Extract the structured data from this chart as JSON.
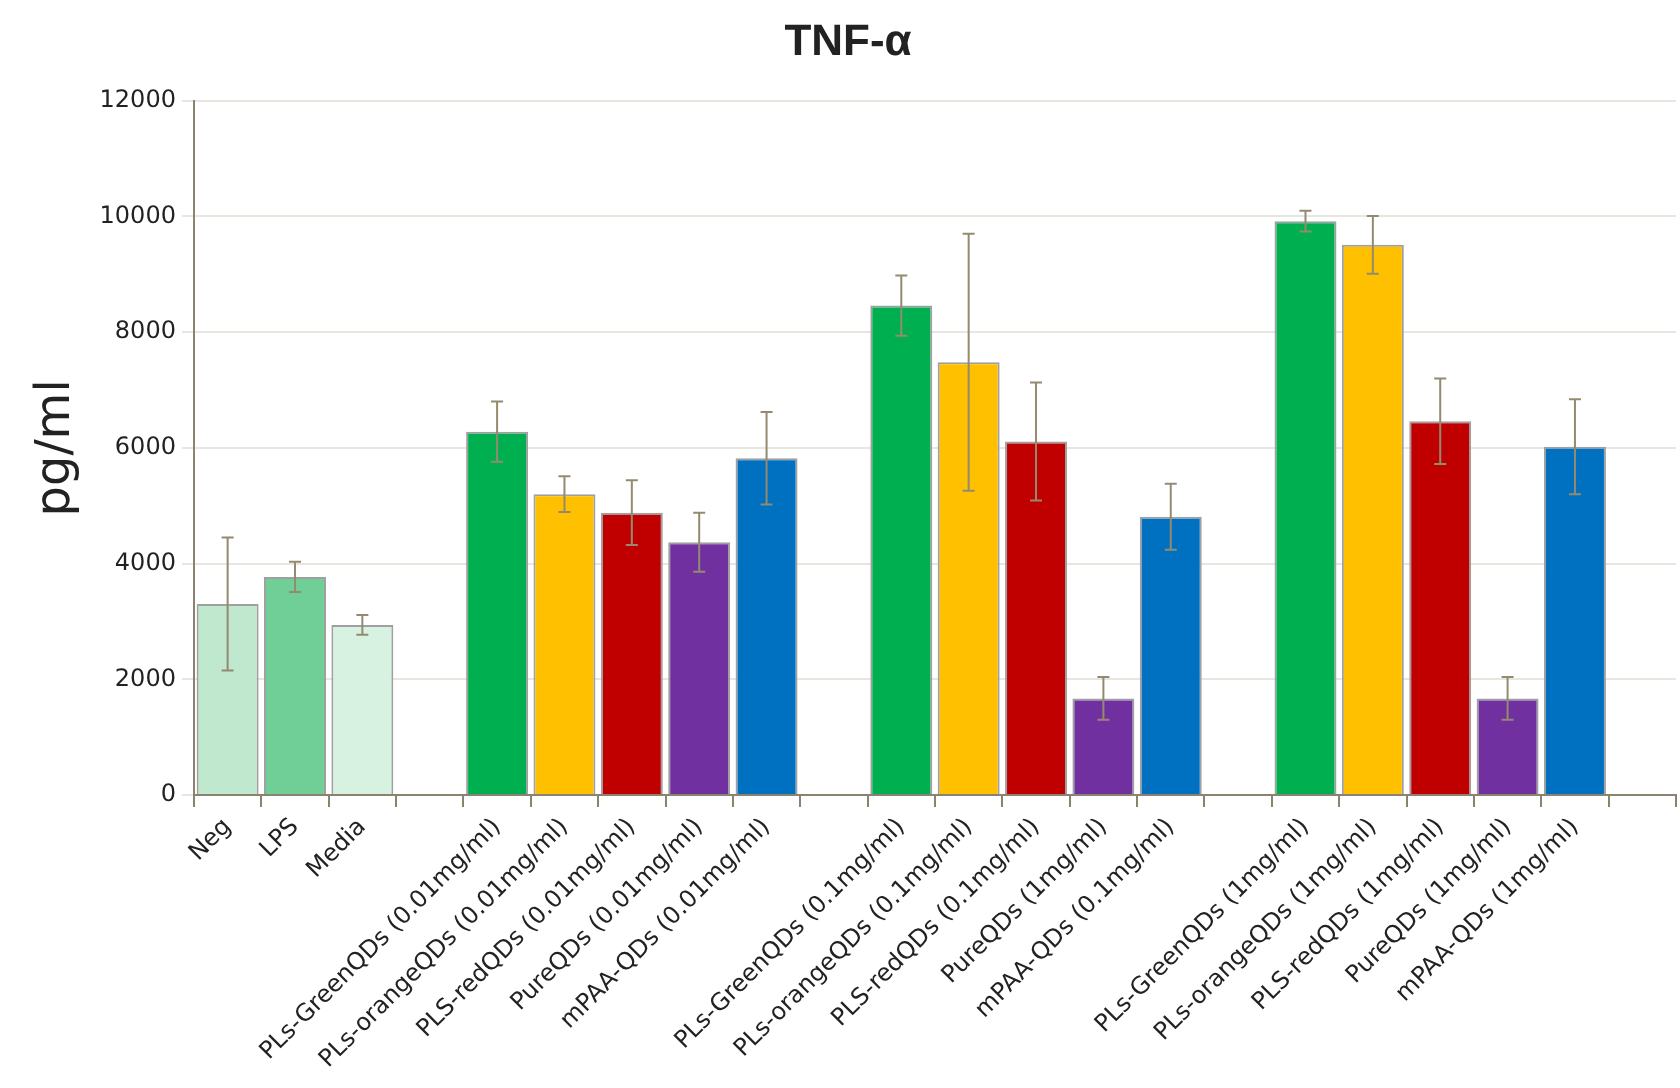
{
  "chart_data": {
    "type": "bar",
    "title": "TNF-α",
    "ylabel": "pg/ml",
    "categories": [
      "Neg",
      "LPS",
      "Media",
      null,
      "PLs-GreenQDs (0.01mg/ml)",
      "PLs-orangeQDs (0.01mg/ml)",
      "PLS-redQDs (0.01mg/ml)",
      "PureQDs (0.01mg/ml)",
      "mPAA-QDs (0.01mg/ml)",
      null,
      "PLs-GreenQDs (0.1mg/ml)",
      "PLs-orangeQDs (0.1mg/ml)",
      "PLS-redQDs (0.1mg/ml)",
      "PureQDs (1mg/ml)",
      "mPAA-QDs (0.1mg/ml)",
      null,
      "PLs-GreenQDs (1mg/ml)",
      "PLs-orangeQDs (1mg/ml)",
      "PLS-redQDs (1mg/ml)",
      "PureQDs (1mg/ml)",
      "mPAA-QDs (1mg/ml)",
      null
    ],
    "values": [
      3300,
      3770,
      2940,
      null,
      6280,
      5200,
      4880,
      4370,
      5820,
      null,
      8460,
      7480,
      6110,
      1670,
      4810,
      null,
      9920,
      9510,
      6460,
      1670,
      6020,
      null
    ],
    "errors": [
      1150,
      260,
      170,
      null,
      520,
      310,
      560,
      510,
      800,
      null,
      520,
      2220,
      1020,
      370,
      570,
      null,
      180,
      500,
      740,
      370,
      820,
      null
    ],
    "colors": [
      "#bfe8cf",
      "#6fcf97",
      "#d8f2e2",
      null,
      "#00b050",
      "#ffc000",
      "#c00000",
      "#7030a0",
      "#0070c0",
      null,
      "#00b050",
      "#ffc000",
      "#c00000",
      "#7030a0",
      "#0070c0",
      null,
      "#00b050",
      "#ffc000",
      "#c00000",
      "#7030a0",
      "#0070c0",
      null
    ],
    "ylim": [
      0,
      12000
    ],
    "yticks": [
      0,
      2000,
      4000,
      6000,
      8000,
      10000,
      12000
    ],
    "grid": "y",
    "legend": false
  }
}
